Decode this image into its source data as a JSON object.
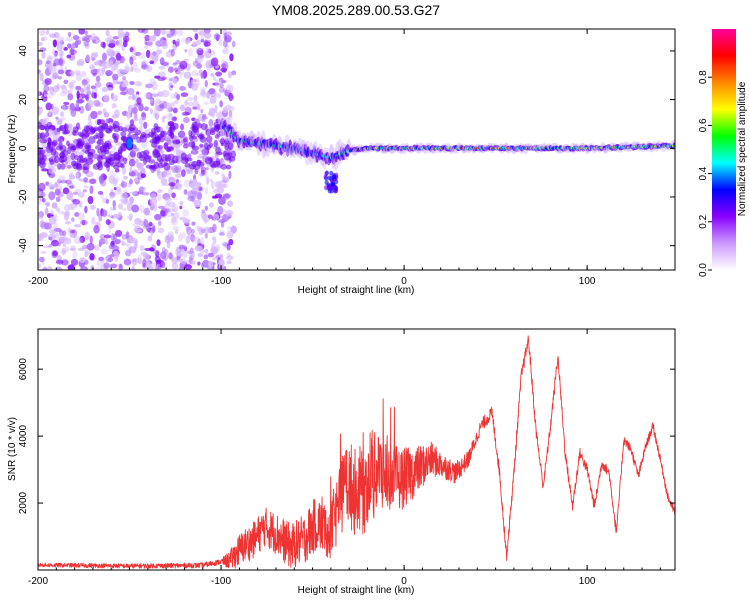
{
  "title": "YM08.2025.289.00.53.G27",
  "chart_data": [
    {
      "type": "heatmap",
      "xlabel": "Height of straight line (km)",
      "ylabel": "Frequency (Hz)",
      "xlim": [
        -200,
        148
      ],
      "ylim": [
        -50,
        49
      ],
      "xticks": [
        -200,
        -100,
        0,
        100
      ],
      "xtick_labels": [
        "-200",
        "-100",
        "0",
        "100"
      ],
      "yticks": [
        -40,
        -20,
        0,
        20,
        40
      ],
      "ytick_labels": [
        "-40",
        "-20",
        "0",
        "20",
        "40"
      ],
      "colorbar": {
        "label": "Normalized spectral amplitude",
        "range": [
          0.0,
          1.0
        ],
        "ticks": [
          0.0,
          0.2,
          0.4,
          0.6,
          0.8
        ],
        "tick_labels": [
          "0.0",
          "0.2",
          "0.4",
          "0.6",
          "0.8"
        ],
        "colors": [
          "#ffffff",
          "#cc99ff",
          "#8800ff",
          "#0000ff",
          "#00ffff",
          "#00ff00",
          "#ffff00",
          "#ff8800",
          "#ff0000",
          "#ff0099"
        ]
      },
      "features": {
        "noise_region_x": [
          -200,
          -93
        ],
        "signal_centerline": [
          [
            -100,
            10
          ],
          [
            -90,
            3
          ],
          [
            -80,
            2
          ],
          [
            -70,
            1
          ],
          [
            -60,
            0
          ],
          [
            -50,
            -2
          ],
          [
            -40,
            -4
          ],
          [
            -30,
            -1
          ],
          [
            -20,
            0
          ],
          [
            0,
            0
          ],
          [
            50,
            0
          ],
          [
            100,
            0
          ],
          [
            148,
            1
          ]
        ],
        "blob_near_x": -150,
        "offshoot_x": [
          -43,
          -37
        ],
        "offshoot_freq": [
          -10,
          -18
        ]
      }
    },
    {
      "type": "line",
      "xlabel": "Height of straight line (km)",
      "ylabel": "SNR (10 * v/v)",
      "xlim": [
        -200,
        148
      ],
      "ylim": [
        0,
        7200
      ],
      "xticks": [
        -200,
        -100,
        0,
        100
      ],
      "xtick_labels": [
        "-200",
        "-100",
        "0",
        "100"
      ],
      "yticks": [
        2000,
        4000,
        6000
      ],
      "ytick_labels": [
        "2000",
        "4000",
        "6000"
      ],
      "series": [
        {
          "name": "SNR",
          "color": "#ee3333",
          "envelope": {
            "x": [
              -200,
              -150,
              -110,
              -95,
              -88,
              -82,
              -76,
              -70,
              -62,
              -55,
              -48,
              -40,
              -36,
              -32,
              -26,
              -20,
              -14,
              -8,
              -2,
              5,
              15,
              22,
              28,
              35,
              42,
              48,
              52,
              56,
              60,
              64,
              68,
              72,
              76,
              80,
              84,
              88,
              92,
              96,
              100,
              104,
              108,
              112,
              116,
              120,
              124,
              128,
              132,
              136,
              140,
              144,
              148
            ],
            "y": [
              150,
              120,
              140,
              300,
              700,
              900,
              1300,
              1100,
              700,
              900,
              1400,
              1200,
              1900,
              2600,
              2300,
              2500,
              3000,
              2800,
              2700,
              2900,
              3300,
              3100,
              2900,
              3300,
              4300,
              4700,
              3000,
              400,
              2900,
              5800,
              6900,
              4200,
              2500,
              4300,
              6400,
              3500,
              1900,
              3500,
              3000,
              1900,
              3200,
              2900,
              1100,
              3900,
              3600,
              2800,
              3700,
              4300,
              3300,
              2200,
              1700
            ]
          },
          "noise_amplitude": {
            "x": [
              -200,
              -100,
              -90,
              -60,
              -40,
              -30,
              -20,
              -10,
              0,
              20,
              40,
              148
            ],
            "y": [
              60,
              80,
              500,
              700,
              900,
              1300,
              1400,
              1100,
              900,
              400,
              200,
              120
            ]
          }
        }
      ]
    }
  ]
}
